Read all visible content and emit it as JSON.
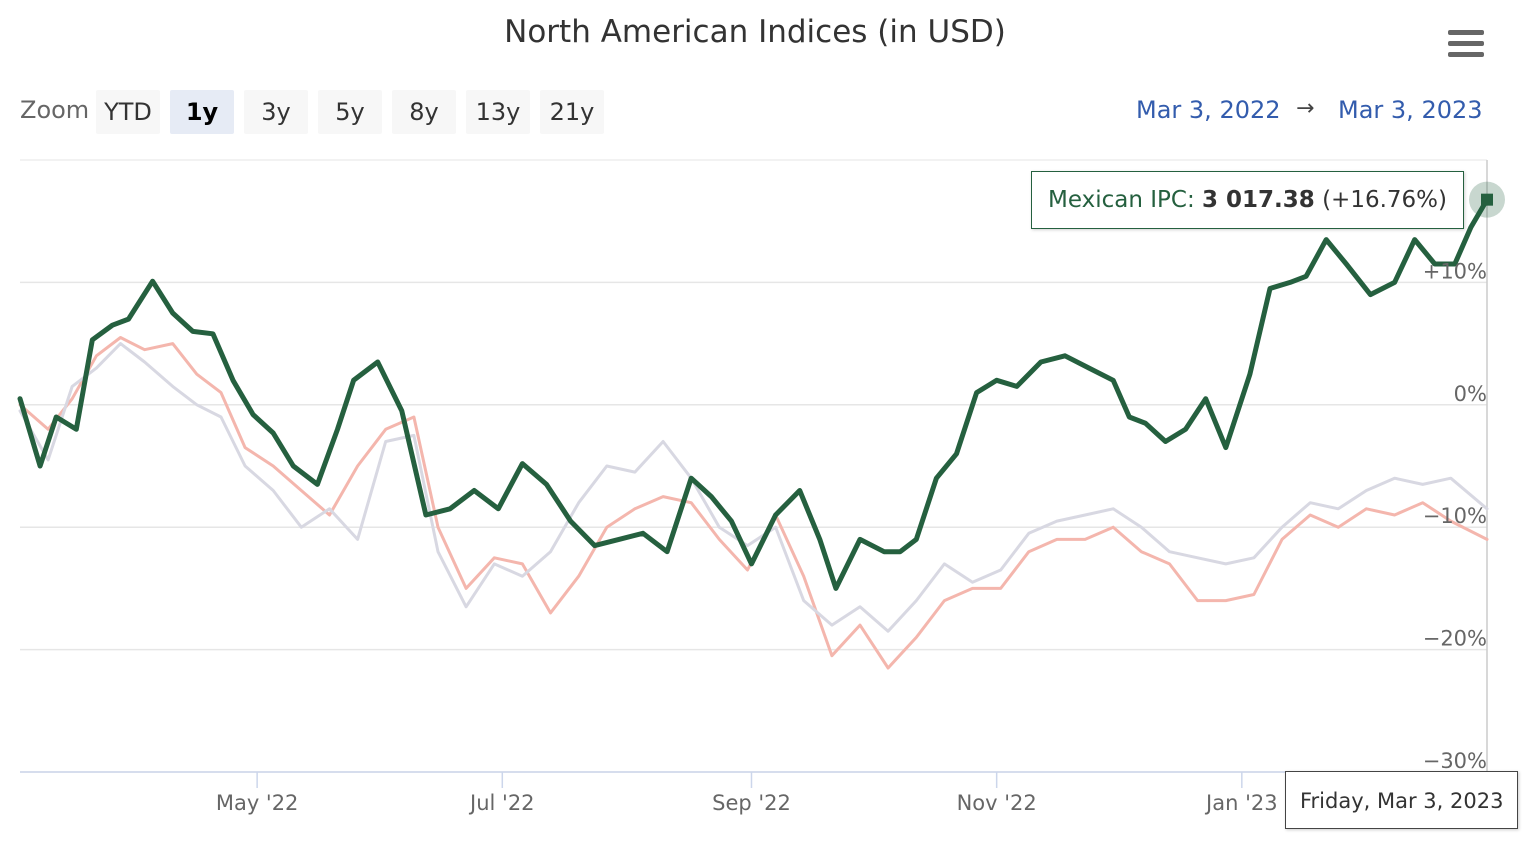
{
  "title": "North American Indices (in USD)",
  "menu_icon": "hamburger-menu-icon",
  "zoom": {
    "label": "Zoom",
    "buttons": [
      "YTD",
      "1y",
      "3y",
      "5y",
      "8y",
      "13y",
      "21y"
    ],
    "active": "1y"
  },
  "range": {
    "from": "Mar 3, 2022",
    "arrow": "→",
    "to": "Mar 3, 2023"
  },
  "tooltip": {
    "series": "Mexican IPC",
    "separator": ":",
    "value": "3 017.38",
    "change": "(+16.76%)"
  },
  "date_tooltip": "Friday, Mar 3, 2023",
  "chart_data": {
    "type": "line",
    "title": "North American Indices (in USD)",
    "x_tick_labels": [
      "May '22",
      "Jul '22",
      "Sep '22",
      "Nov '22",
      "Jan '23"
    ],
    "x_tick_dates": [
      "2022-05-01",
      "2022-07-01",
      "2022-09-01",
      "2022-11-01",
      "2023-01-01"
    ],
    "x_range": [
      "2022-03-03",
      "2023-03-03"
    ],
    "y_tick_labels": [
      "+10%",
      "0%",
      "−10%",
      "−20%",
      "−30%"
    ],
    "y_ticks": [
      10,
      0,
      -10,
      -20,
      -30
    ],
    "ylim": [
      -30,
      20
    ],
    "grid": true,
    "series": [
      {
        "name": "Mexican IPC",
        "color": "#25603f",
        "highlighted": true,
        "x": [
          "2022-03-03",
          "2022-03-08",
          "2022-03-12",
          "2022-03-17",
          "2022-03-21",
          "2022-03-26",
          "2022-03-30",
          "2022-04-05",
          "2022-04-10",
          "2022-04-15",
          "2022-04-20",
          "2022-04-25",
          "2022-04-30",
          "2022-05-05",
          "2022-05-10",
          "2022-05-16",
          "2022-05-21",
          "2022-05-25",
          "2022-05-31",
          "2022-06-06",
          "2022-06-12",
          "2022-06-18",
          "2022-06-24",
          "2022-06-30",
          "2022-07-06",
          "2022-07-12",
          "2022-07-18",
          "2022-07-24",
          "2022-07-30",
          "2022-08-05",
          "2022-08-11",
          "2022-08-17",
          "2022-08-22",
          "2022-08-27",
          "2022-09-01",
          "2022-09-07",
          "2022-09-13",
          "2022-09-18",
          "2022-09-22",
          "2022-09-28",
          "2022-10-04",
          "2022-10-08",
          "2022-10-12",
          "2022-10-17",
          "2022-10-22",
          "2022-10-27",
          "2022-11-01",
          "2022-11-06",
          "2022-11-12",
          "2022-11-18",
          "2022-11-24",
          "2022-11-30",
          "2022-12-04",
          "2022-12-08",
          "2022-12-13",
          "2022-12-18",
          "2022-12-23",
          "2022-12-28",
          "2023-01-03",
          "2023-01-08",
          "2023-01-13",
          "2023-01-17",
          "2023-01-22",
          "2023-01-27",
          "2023-02-02",
          "2023-02-08",
          "2023-02-13",
          "2023-02-18",
          "2023-02-23",
          "2023-02-27",
          "2023-03-03"
        ],
        "y": [
          0.5,
          -5.0,
          -1.0,
          -2.0,
          5.3,
          6.5,
          7.0,
          10.1,
          7.5,
          6.0,
          5.8,
          2.0,
          -0.8,
          -2.3,
          -5.0,
          -6.5,
          -2.0,
          2.0,
          3.5,
          -0.5,
          -9.0,
          -8.5,
          -7.0,
          -8.5,
          -4.8,
          -6.5,
          -9.5,
          -11.5,
          -11.0,
          -10.5,
          -12.0,
          -6.0,
          -7.5,
          -9.5,
          -13.0,
          -9.0,
          -7.0,
          -11.0,
          -15.0,
          -11.0,
          -12.0,
          -12.0,
          -11.0,
          -6.0,
          -4.0,
          1.0,
          2.0,
          1.5,
          3.5,
          4.0,
          3.0,
          2.0,
          -1.0,
          -1.5,
          -3.0,
          -2.0,
          0.5,
          -3.5,
          2.5,
          9.5,
          10.0,
          10.5,
          13.5,
          11.5,
          9.0,
          10.0,
          13.5,
          11.5,
          11.5,
          14.5,
          16.76
        ]
      },
      {
        "name": "",
        "color": "#f4b6ad",
        "highlighted": false,
        "x": [
          "2022-03-03",
          "2022-03-10",
          "2022-03-16",
          "2022-03-22",
          "2022-03-28",
          "2022-04-03",
          "2022-04-10",
          "2022-04-16",
          "2022-04-22",
          "2022-04-28",
          "2022-05-05",
          "2022-05-12",
          "2022-05-19",
          "2022-05-26",
          "2022-06-02",
          "2022-06-09",
          "2022-06-15",
          "2022-06-22",
          "2022-06-29",
          "2022-07-06",
          "2022-07-13",
          "2022-07-20",
          "2022-07-27",
          "2022-08-03",
          "2022-08-10",
          "2022-08-17",
          "2022-08-24",
          "2022-08-31",
          "2022-09-07",
          "2022-09-14",
          "2022-09-21",
          "2022-09-28",
          "2022-10-05",
          "2022-10-12",
          "2022-10-19",
          "2022-10-26",
          "2022-11-02",
          "2022-11-09",
          "2022-11-16",
          "2022-11-23",
          "2022-11-30",
          "2022-12-07",
          "2022-12-14",
          "2022-12-21",
          "2022-12-28",
          "2023-01-04",
          "2023-01-11",
          "2023-01-18",
          "2023-01-25",
          "2023-02-01",
          "2023-02-08",
          "2023-02-15",
          "2023-02-22",
          "2023-03-03"
        ],
        "y": [
          0.0,
          -2.0,
          0.5,
          4.0,
          5.5,
          4.5,
          5.0,
          2.5,
          1.0,
          -3.5,
          -5.0,
          -7.0,
          -9.0,
          -5.0,
          -2.0,
          -1.0,
          -10.0,
          -15.0,
          -12.5,
          -13.0,
          -17.0,
          -14.0,
          -10.0,
          -8.5,
          -7.5,
          -8.0,
          -11.0,
          -13.5,
          -9.0,
          -14.0,
          -20.5,
          -18.0,
          -21.5,
          -19.0,
          -16.0,
          -15.0,
          -15.0,
          -12.0,
          -11.0,
          -11.0,
          -10.0,
          -12.0,
          -13.0,
          -16.0,
          -16.0,
          -15.5,
          -11.0,
          -9.0,
          -10.0,
          -8.5,
          -9.0,
          -8.0,
          -9.5,
          -11.0
        ]
      },
      {
        "name": "",
        "color": "#d8d8e2",
        "highlighted": false,
        "x": [
          "2022-03-03",
          "2022-03-10",
          "2022-03-16",
          "2022-03-22",
          "2022-03-28",
          "2022-04-03",
          "2022-04-10",
          "2022-04-16",
          "2022-04-22",
          "2022-04-28",
          "2022-05-05",
          "2022-05-12",
          "2022-05-19",
          "2022-05-26",
          "2022-06-02",
          "2022-06-09",
          "2022-06-15",
          "2022-06-22",
          "2022-06-29",
          "2022-07-06",
          "2022-07-13",
          "2022-07-20",
          "2022-07-27",
          "2022-08-03",
          "2022-08-10",
          "2022-08-17",
          "2022-08-24",
          "2022-08-31",
          "2022-09-07",
          "2022-09-14",
          "2022-09-21",
          "2022-09-28",
          "2022-10-05",
          "2022-10-12",
          "2022-10-19",
          "2022-10-26",
          "2022-11-02",
          "2022-11-09",
          "2022-11-16",
          "2022-11-23",
          "2022-11-30",
          "2022-12-07",
          "2022-12-14",
          "2022-12-21",
          "2022-12-28",
          "2023-01-04",
          "2023-01-11",
          "2023-01-18",
          "2023-01-25",
          "2023-02-01",
          "2023-02-08",
          "2023-02-15",
          "2023-02-22",
          "2023-03-03"
        ],
        "y": [
          -0.5,
          -4.5,
          1.5,
          3.0,
          5.0,
          3.5,
          1.5,
          0.0,
          -1.0,
          -5.0,
          -7.0,
          -10.0,
          -8.5,
          -11.0,
          -3.0,
          -2.5,
          -12.0,
          -16.5,
          -13.0,
          -14.0,
          -12.0,
          -8.0,
          -5.0,
          -5.5,
          -3.0,
          -6.0,
          -10.0,
          -11.5,
          -10.0,
          -16.0,
          -18.0,
          -16.5,
          -18.5,
          -16.0,
          -13.0,
          -14.5,
          -13.5,
          -10.5,
          -9.5,
          -9.0,
          -8.5,
          -10.0,
          -12.0,
          -12.5,
          -13.0,
          -12.5,
          -10.0,
          -8.0,
          -8.5,
          -7.0,
          -6.0,
          -6.5,
          -6.0,
          -8.5
        ]
      }
    ]
  }
}
